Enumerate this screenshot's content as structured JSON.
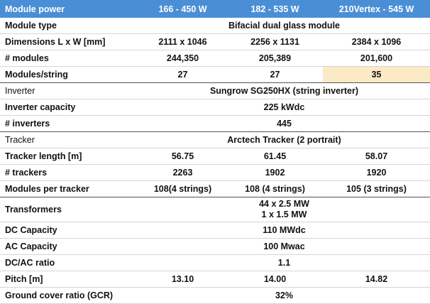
{
  "header": [
    "Module power",
    "166 - 450 W",
    "182 - 535 W",
    "210Vertex - 545 W"
  ],
  "rows": [
    [
      "Module type",
      "Bifacial dual glass module"
    ],
    [
      "Dimensions L x W [mm]",
      "2111 x 1046",
      "2256 x 1131",
      "2384 x 1096"
    ],
    [
      "# modules",
      "244,350",
      "205,389",
      "201,600"
    ],
    [
      "Modules/string",
      "27",
      "27",
      "35"
    ],
    [
      "Inverter",
      "Sungrow SG250HX (string inverter)"
    ],
    [
      "Inverter capacity",
      "225 kWdc"
    ],
    [
      "# inverters",
      "445"
    ],
    [
      "Tracker",
      "Arctech Tracker (2 portrait)"
    ],
    [
      "Tracker length [m]",
      "56.75",
      "61.45",
      "58.07"
    ],
    [
      "# trackers",
      "2263",
      "1902",
      "1920"
    ],
    [
      "Modules per tracker",
      "108(4 strings)",
      "108 (4 strings)",
      "105 (3 strings)"
    ],
    [
      "Transformers",
      [
        "44 x 2.5 MW",
        "1 x 1.5 MW"
      ]
    ],
    [
      "DC Capacity",
      "110 MWdc"
    ],
    [
      "AC Capacity",
      "100 Mwac"
    ],
    [
      "DC/AC ratio",
      "1.1"
    ],
    [
      "Pitch [m]",
      "13.10",
      "14.00",
      "14.82"
    ],
    [
      "Ground cover ratio (GCR)",
      "32%"
    ]
  ]
}
